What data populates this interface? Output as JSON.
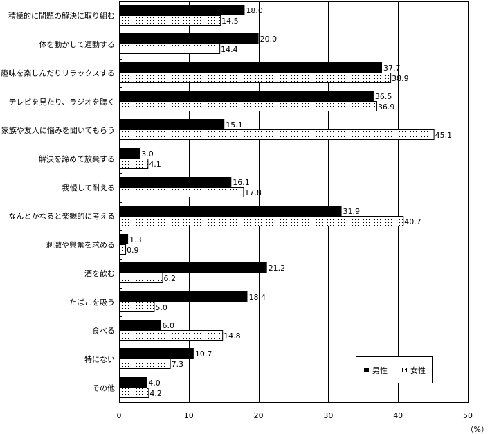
{
  "chart_data": {
    "type": "bar",
    "orientation": "horizontal",
    "title": "",
    "xlabel": "（%）",
    "ylabel": "",
    "xlim": [
      0,
      50
    ],
    "xticks": [
      0,
      10,
      20,
      30,
      40,
      50
    ],
    "grid": true,
    "legend_position": "bottom-right",
    "categories": [
      "積極的に問題の解決に取り組む",
      "体を動かして運動する",
      "趣味を楽しんだりリラックスする",
      "テレビを見たり、ラジオを聴く",
      "家族や友人に悩みを聞いてもらう",
      "解決を諦めて放棄する",
      "我慢して耐える",
      "なんとかなると楽観的に考える",
      "刺激や興奮を求める",
      "酒を飲む",
      "たばこを吸う",
      "食べる",
      "特にない",
      "その他"
    ],
    "series": [
      {
        "name": "男性",
        "color": "#000000",
        "values": [
          18.0,
          20.0,
          37.7,
          36.5,
          15.1,
          3.0,
          16.1,
          31.9,
          1.3,
          21.2,
          18.4,
          6.0,
          10.7,
          4.0
        ]
      },
      {
        "name": "女性",
        "color": "#ffffff",
        "pattern": "dots",
        "values": [
          14.5,
          14.4,
          38.9,
          36.9,
          45.1,
          4.1,
          17.8,
          40.7,
          0.9,
          6.2,
          5.0,
          14.8,
          7.3,
          4.2
        ]
      }
    ]
  }
}
